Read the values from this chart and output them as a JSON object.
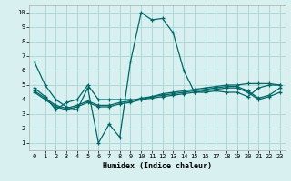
{
  "xlabel": "Humidex (Indice chaleur)",
  "bg_color": "#d8f0f0",
  "grid_color": "#b0d8d8",
  "line_color": "#006666",
  "xlim": [
    -0.5,
    23.5
  ],
  "ylim": [
    0.5,
    10.5
  ],
  "xticks": [
    0,
    1,
    2,
    3,
    4,
    5,
    6,
    7,
    8,
    9,
    10,
    11,
    12,
    13,
    14,
    15,
    16,
    17,
    18,
    19,
    20,
    21,
    22,
    23
  ],
  "yticks": [
    1,
    2,
    3,
    4,
    5,
    6,
    7,
    8,
    9,
    10
  ],
  "series": [
    [
      6.6,
      5.0,
      4.0,
      3.5,
      3.3,
      4.8,
      1.0,
      2.3,
      1.4,
      6.6,
      10.0,
      9.5,
      9.6,
      8.6,
      6.0,
      4.5,
      4.5,
      4.6,
      4.5,
      4.5,
      4.2,
      4.8,
      5.0,
      5.0
    ],
    [
      4.8,
      4.2,
      3.3,
      3.8,
      4.0,
      5.0,
      4.0,
      4.0,
      4.0,
      4.0,
      4.0,
      4.2,
      4.4,
      4.5,
      4.6,
      4.7,
      4.8,
      4.9,
      5.0,
      5.0,
      5.1,
      5.1,
      5.1,
      5.0
    ],
    [
      4.5,
      4.0,
      3.5,
      3.3,
      3.5,
      3.8,
      3.5,
      3.5,
      3.7,
      3.8,
      4.0,
      4.1,
      4.2,
      4.3,
      4.4,
      4.5,
      4.6,
      4.7,
      4.8,
      4.8,
      4.5,
      4.0,
      4.2,
      4.5
    ],
    [
      4.6,
      4.1,
      3.6,
      3.4,
      3.6,
      3.9,
      3.6,
      3.6,
      3.8,
      3.9,
      4.1,
      4.2,
      4.3,
      4.4,
      4.5,
      4.6,
      4.7,
      4.8,
      4.9,
      4.9,
      4.6,
      4.1,
      4.3,
      4.8
    ]
  ]
}
